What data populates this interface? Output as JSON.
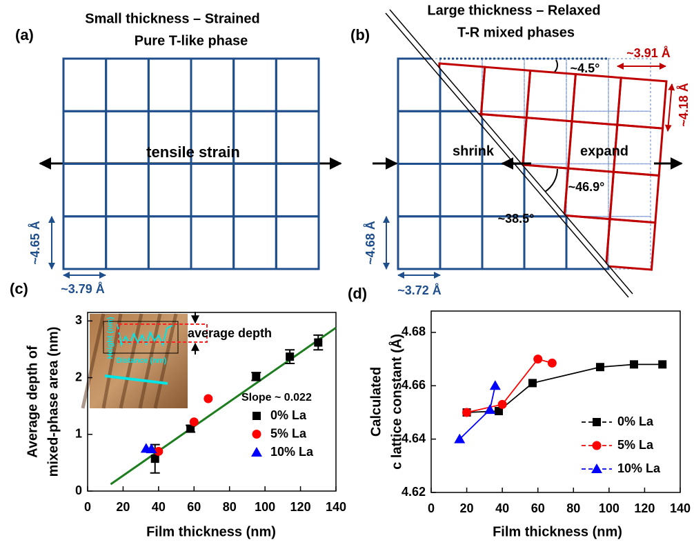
{
  "panels": {
    "a": {
      "label": "(a)",
      "title_lines": [
        "Small thickness – Strained",
        "Pure T-like phase"
      ],
      "strain_label": "tensile strain",
      "height_label": "~4.65 Å",
      "width_label": "~3.79 Å"
    },
    "b": {
      "label": "(b)",
      "title_lines": [
        "Large thickness – Relaxed",
        "T-R mixed phases"
      ],
      "r_width_label": "~3.91 Å",
      "tilt_label": "~4.5°",
      "r_height_label": "~4.18 Å",
      "shrink_label": "shrink",
      "expand_label": "expand",
      "angle_r_label": "~46.9°",
      "angle_t_label": "~38.5°",
      "t_height_label": "~4.68 Å",
      "t_width_label": "~3.72 Å"
    }
  },
  "chart_data": [
    {
      "type": "scatter",
      "panel_label": "(c)",
      "x_label": "Film thickness (nm)",
      "y_label_lines": [
        "Average depth of",
        "mixed-phase area (nm)"
      ],
      "xlim": [
        0,
        140
      ],
      "xticks": [
        0,
        20,
        40,
        60,
        80,
        100,
        120,
        140
      ],
      "ylim": [
        0,
        3.15
      ],
      "yticks": [
        0,
        1,
        2,
        3
      ],
      "series": [
        {
          "name": "0% La",
          "color": "#000000",
          "marker": "square",
          "x": [
            38,
            58,
            95,
            114,
            130
          ],
          "values": [
            0.57,
            1.1,
            2.02,
            2.37,
            2.62
          ],
          "errors": [
            0.25,
            0.06,
            0.07,
            0.12,
            0.13
          ]
        },
        {
          "name": "5% La",
          "color": "#ff0000",
          "marker": "circle",
          "x": [
            40,
            60,
            68
          ],
          "values": [
            0.7,
            1.22,
            1.63
          ]
        },
        {
          "name": "10% La",
          "color": "#0000ff",
          "marker": "triangle",
          "x": [
            33,
            36
          ],
          "values": [
            0.75,
            0.74
          ]
        }
      ],
      "fit": {
        "x": [
          13,
          140
        ],
        "values": [
          0.12,
          2.88
        ],
        "color": "#1e7d1e"
      },
      "annotation": "Slope ~ 0.022",
      "inset": {
        "y_label": "Height (nm)",
        "x_label": "Distance (nm)",
        "depth_label": "average depth"
      },
      "legend": "lower right"
    },
    {
      "type": "line",
      "panel_label": "(d)",
      "x_label": "Film thickness (nm)",
      "y_label_lines": [
        "Calculated",
        "c lattice constant (Å)"
      ],
      "xlim": [
        0,
        140
      ],
      "xticks": [
        0,
        20,
        40,
        60,
        80,
        100,
        120,
        140
      ],
      "ylim": [
        4.62,
        4.688
      ],
      "yticks": [
        4.62,
        4.64,
        4.66,
        4.68
      ],
      "series": [
        {
          "name": "0% La",
          "color": "#000000",
          "marker": "square",
          "x": [
            20,
            38,
            57,
            95,
            114,
            130
          ],
          "values": [
            4.65,
            4.6505,
            4.661,
            4.667,
            4.668,
            4.668
          ]
        },
        {
          "name": "5% La",
          "color": "#ff0000",
          "marker": "circle",
          "x": [
            20,
            40,
            60,
            68
          ],
          "values": [
            4.65,
            4.653,
            4.67,
            4.6685
          ]
        },
        {
          "name": "10% La",
          "color": "#0000ff",
          "marker": "triangle",
          "x": [
            16,
            33,
            36
          ],
          "values": [
            4.64,
            4.651,
            4.66
          ]
        }
      ],
      "legend": "lower right"
    }
  ]
}
